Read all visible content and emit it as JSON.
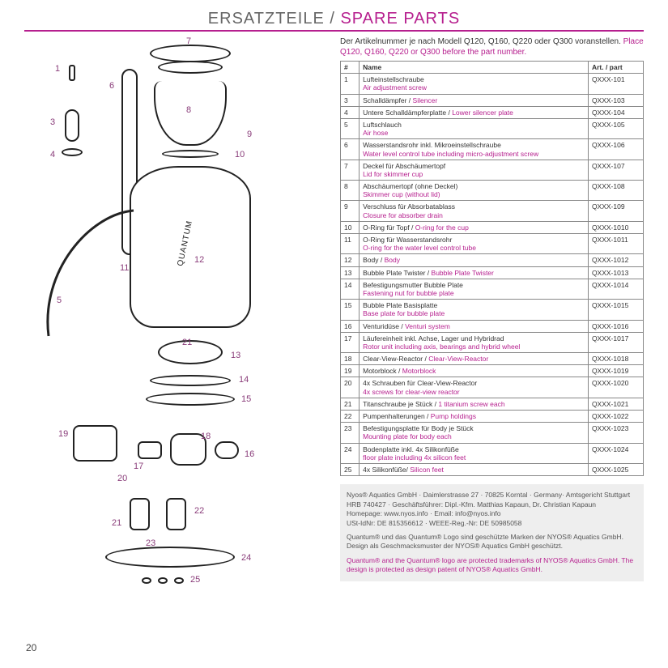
{
  "title": {
    "de": "ERSATZTEILE",
    "sep": " / ",
    "en": "SPARE PARTS"
  },
  "intro": {
    "de": "Der Artikelnummer je nach Modell Q120, Q160, Q220 oder Q300 voranstellen.",
    "en": "Place Q120, Q160, Q220 or Q300 before the part number."
  },
  "headers": {
    "num": "#",
    "name": "Name",
    "art": "Art. / part"
  },
  "rows": [
    {
      "num": "1",
      "de": "Lufteinstellschraube",
      "en": "Air adjustment screw",
      "art": "QXXX-101"
    },
    {
      "num": "3",
      "de": "Schalldämpfer / ",
      "en": "Silencer",
      "art": "QXXX-103"
    },
    {
      "num": "4",
      "de": "Untere Schalldämpferplatte / ",
      "en": "Lower silencer plate",
      "art": "QXXX-104"
    },
    {
      "num": "5",
      "de": "Luftschlauch",
      "en": "Air hose",
      "art": "QXXX-105"
    },
    {
      "num": "6",
      "de": "Wasserstandsrohr inkl. Mikroeinstellschraube",
      "en": "Water level control tube including micro-adjustment screw",
      "art": "QXXX-106"
    },
    {
      "num": "7",
      "de": "Deckel für Abschäumertopf",
      "en": "Lid for skimmer cup",
      "art": "QXXX-107"
    },
    {
      "num": "8",
      "de": "Abschäumertopf (ohne Deckel)",
      "en": "Skimmer cup (without lid)",
      "art": "QXXX-108"
    },
    {
      "num": "9",
      "de": "Verschluss für Absorbatablass",
      "en": "Closure for absorber drain",
      "art": "QXXX-109"
    },
    {
      "num": "10",
      "de": "O-Ring für Topf / ",
      "en": "O-ring for the cup",
      "art": "QXXX-1010"
    },
    {
      "num": "11",
      "de": "O-Ring für Wasserstandsrohr",
      "en": "O-ring for the water level control tube",
      "art": "QXXX-1011"
    },
    {
      "num": "12",
      "de": "Body / ",
      "en": "Body",
      "art": "QXXX-1012"
    },
    {
      "num": "13",
      "de": "Bubble Plate Twister / ",
      "en": "Bubble Plate Twister",
      "art": "QXXX-1013"
    },
    {
      "num": "14",
      "de": "Befestigungsmutter Bubble Plate",
      "en": "Fastening nut for bubble plate",
      "art": "QXXX-1014"
    },
    {
      "num": "15",
      "de": "Bubble Plate Basisplatte",
      "en": "Base plate for bubble plate",
      "art": "QXXX-1015"
    },
    {
      "num": "16",
      "de": "Venturidüse / ",
      "en": "Venturi system",
      "art": "QXXX-1016"
    },
    {
      "num": "17",
      "de": "Läufereinheit inkl. Achse, Lager und Hybridrad",
      "en": "Rotor unit including axis, bearings and hybrid wheel",
      "art": "QXXX-1017"
    },
    {
      "num": "18",
      "de": "Clear-View-Reactor / ",
      "en": "Clear-View-Reactor",
      "art": "QXXX-1018"
    },
    {
      "num": "19",
      "de": "Motorblock / ",
      "en": "Motorblock",
      "art": "QXXX-1019"
    },
    {
      "num": "20",
      "de": "4x Schrauben für Clear-View-Reactor",
      "en": "4x screws for clear-view reactor",
      "art": "QXXX-1020"
    },
    {
      "num": "21",
      "de": "Titanschraube je Stück / ",
      "en": "1 titanium screw each",
      "art": "QXXX-1021"
    },
    {
      "num": "22",
      "de": "Pumpenhalterungen / ",
      "en": "Pump holdings",
      "art": "QXXX-1022"
    },
    {
      "num": "23",
      "de": "Befestigungsplatte für Body je Stück",
      "en": "Mounting plate for body each",
      "art": "QXXX-1023"
    },
    {
      "num": "24",
      "de": "Bodenplatte inkl. 4x Silikonfüße",
      "en": "floor plate including 4x silicon feet",
      "art": "QXXX-1024"
    },
    {
      "num": "25",
      "de": "4x Silikonfüße/ ",
      "en": "Silicon feet",
      "art": "QXXX-1025"
    }
  ],
  "footer": {
    "line1": "Nyos® Aquatics GmbH · Daimlerstrasse 27 · 70825 Korntal · Germany· Amtsgericht Stuttgart HRB 740427 · Geschäftsführer: Dipl.-Kfm. Matthias Kapaun, Dr. Christian Kapaun",
    "line2": "Homepage: www.nyos.info · Email: info@nyos.info",
    "line3": "USt-IdNr: DE 815356612 · WEEE-Reg.-Nr: DE 50985058",
    "line4de": "Quantum® und das Quantum® Logo sind geschützte Marken der NYOS® Aquatics GmbH. Design als Geschmacksmuster der NYOS® Aquatics GmbH geschützt.",
    "line4en": "Quantum® and the Quantum® logo are protected trademarks of NYOS® Aquatics GmbH. The design is protected as design patent of NYOS® Aquatics GmbH."
  },
  "callouts": [
    "1",
    "3",
    "4",
    "5",
    "6",
    "7",
    "8",
    "9",
    "10",
    "11",
    "12",
    "13",
    "14",
    "15",
    "16",
    "17",
    "18",
    "19",
    "20",
    "21",
    "21",
    "22",
    "23",
    "24",
    "25"
  ],
  "brand_label": "QUANTUM",
  "page_number": "20",
  "colors": {
    "accent": "#b61f8e",
    "callout": "#8a3d7a",
    "text": "#333333",
    "border": "#888888",
    "footer_bg": "#eeeeee"
  }
}
